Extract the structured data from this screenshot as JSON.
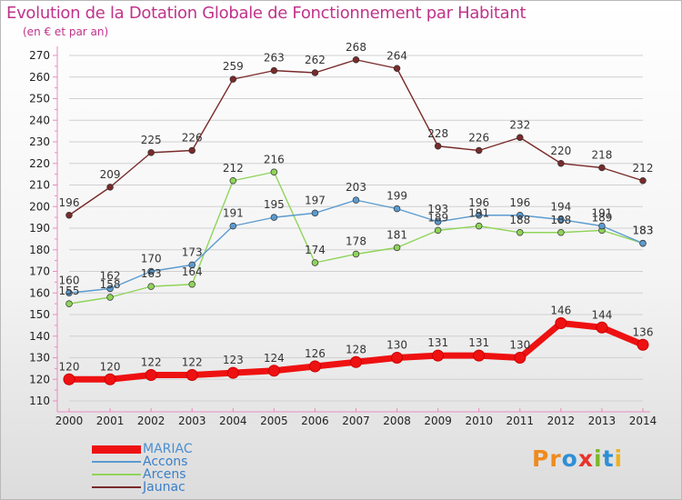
{
  "title": "Evolution de la Dotation Globale de Fonctionnement par Habitant",
  "subtitle": "(en € et par an)",
  "logo": {
    "text": "Proxiti",
    "letter_colors": [
      "#f08a1c",
      "#f08a1c",
      "#2e8fd6",
      "#e8332a",
      "#7ab829",
      "#2e8fd6",
      "#f0b21c"
    ]
  },
  "colors": {
    "axis": "#e88cc0",
    "grid": "#d0d0d0",
    "tick_text": "#222222"
  },
  "chart_data": {
    "type": "line",
    "title": "Evolution de la Dotation Globale de Fonctionnement par Habitant",
    "subtitle": "(en € et par an)",
    "xlabel": "",
    "ylabel": "",
    "x": [
      "2000",
      "2001",
      "2002",
      "2003",
      "2004",
      "2005",
      "2006",
      "2007",
      "2008",
      "2009",
      "2010",
      "2011",
      "2012",
      "2013",
      "2014"
    ],
    "ylim": [
      110,
      270
    ],
    "yticks": [
      110,
      120,
      130,
      140,
      150,
      160,
      170,
      180,
      190,
      200,
      210,
      220,
      230,
      240,
      250,
      260,
      270
    ],
    "grid": true,
    "legend": "bottom-left",
    "series": [
      {
        "name": "MARIAC",
        "color": "#ee1111",
        "values": [
          120,
          120,
          122,
          122,
          123,
          124,
          126,
          128,
          130,
          131,
          131,
          130,
          146,
          144,
          136
        ]
      },
      {
        "name": "Accons",
        "color": "#5b9bd0",
        "values": [
          160,
          162,
          170,
          173,
          191,
          195,
          197,
          203,
          199,
          193,
          196,
          196,
          194,
          191,
          183
        ]
      },
      {
        "name": "Arcens",
        "color": "#8fd45a",
        "values": [
          155,
          158,
          163,
          164,
          212,
          216,
          174,
          178,
          181,
          189,
          191,
          188,
          188,
          189,
          183
        ]
      },
      {
        "name": "Jaunac",
        "color": "#7a2a2a",
        "values": [
          196,
          209,
          225,
          226,
          259,
          263,
          262,
          268,
          264,
          228,
          226,
          232,
          220,
          218,
          212
        ]
      }
    ]
  }
}
